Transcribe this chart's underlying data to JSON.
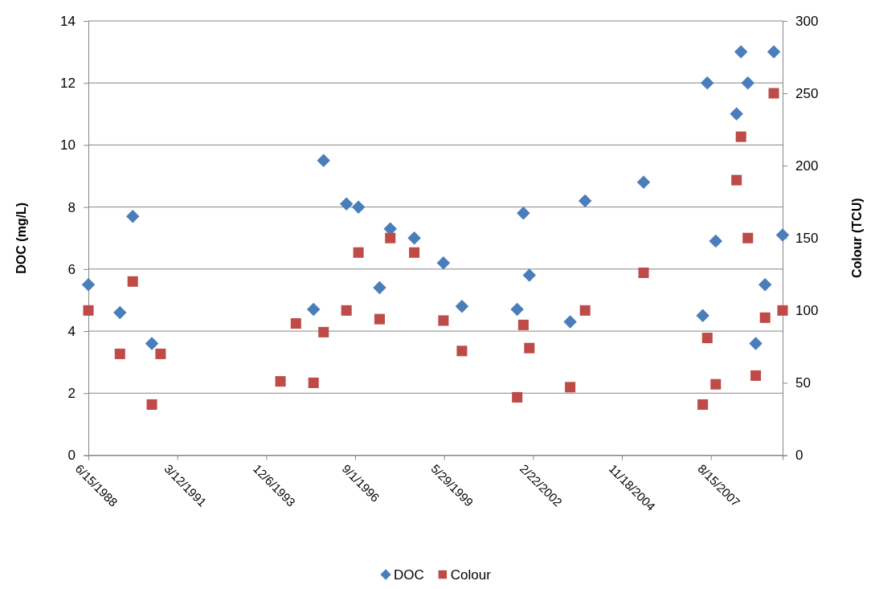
{
  "chart_data": {
    "type": "scatter",
    "ylabel": "DOC (mg/L)",
    "y2label": "Colour (TCU)",
    "xlim": [
      "1988-06-15",
      "2009-10-30"
    ],
    "xticks": [
      {
        "value": "1988-06-15",
        "label": "6/15/1988"
      },
      {
        "value": "1991-03-12",
        "label": "3/12/1991"
      },
      {
        "value": "1993-12-06",
        "label": "12/6/1993"
      },
      {
        "value": "1996-09-01",
        "label": "9/1/1996"
      },
      {
        "value": "1999-05-29",
        "label": "5/29/1999"
      },
      {
        "value": "2002-02-22",
        "label": "2/22/2002"
      },
      {
        "value": "2004-11-18",
        "label": "11/18/2004"
      },
      {
        "value": "2007-08-15",
        "label": "8/15/2007"
      }
    ],
    "ylim": [
      0,
      14
    ],
    "yticks": [
      0,
      2,
      4,
      6,
      8,
      10,
      12,
      14
    ],
    "y2lim": [
      0,
      300
    ],
    "y2ticks": [
      0,
      50,
      100,
      150,
      200,
      250,
      300
    ],
    "grid": "y",
    "legend": "bottom",
    "series": [
      {
        "name": "DOC",
        "color": "#4a7ebb",
        "marker": "diamond",
        "axis": "y",
        "x": [
          "1988-06-15",
          "1989-06-05",
          "1989-10-27",
          "1990-05-30",
          "1995-05-22",
          "1995-09-12",
          "1996-05-26",
          "1996-10-08",
          "1997-06-03",
          "1997-10-01",
          "1998-06-28",
          "1999-05-22",
          "1999-12-16",
          "2001-08-28",
          "2001-11-06",
          "2002-01-12",
          "2003-04-16",
          "2003-10-01",
          "2005-07-20",
          "2007-05-16",
          "2007-07-06",
          "2007-10-09",
          "2008-05-30",
          "2008-07-19",
          "2008-10-04",
          "2009-01-01",
          "2009-04-16",
          "2009-07-23",
          "2009-10-30"
        ],
        "values": [
          5.5,
          4.6,
          7.7,
          3.6,
          4.7,
          9.5,
          8.1,
          8.0,
          5.4,
          7.3,
          7.0,
          6.2,
          4.8,
          4.7,
          7.8,
          5.8,
          4.3,
          8.2,
          8.8,
          4.5,
          12,
          6.9,
          11,
          13,
          12,
          3.6,
          5.5,
          13,
          7.1
        ]
      },
      {
        "name": "Colour",
        "color": "#be4b48",
        "marker": "square",
        "axis": "y2",
        "x": [
          "1988-06-15",
          "1989-06-05",
          "1989-10-27",
          "1990-05-30",
          "1990-09-05",
          "1994-05-15",
          "1994-11-05",
          "1995-05-22",
          "1995-09-12",
          "1996-05-26",
          "1996-10-08",
          "1997-06-03",
          "1997-10-01",
          "1998-06-28",
          "1999-05-22",
          "1999-12-16",
          "2001-08-28",
          "2001-11-06",
          "2002-01-12",
          "2003-04-16",
          "2003-10-01",
          "2005-07-20",
          "2007-05-16",
          "2007-07-06",
          "2007-10-09",
          "2008-05-30",
          "2008-07-19",
          "2008-10-04",
          "2009-01-01",
          "2009-04-16",
          "2009-07-23",
          "2009-10-30"
        ],
        "values": [
          100,
          70,
          120,
          35,
          70,
          51,
          91,
          50,
          85,
          100,
          140,
          94,
          150,
          140,
          93,
          72,
          40,
          90,
          74,
          47,
          100,
          126,
          35,
          81,
          49,
          190,
          220,
          150,
          55,
          95,
          250,
          100
        ]
      }
    ]
  }
}
